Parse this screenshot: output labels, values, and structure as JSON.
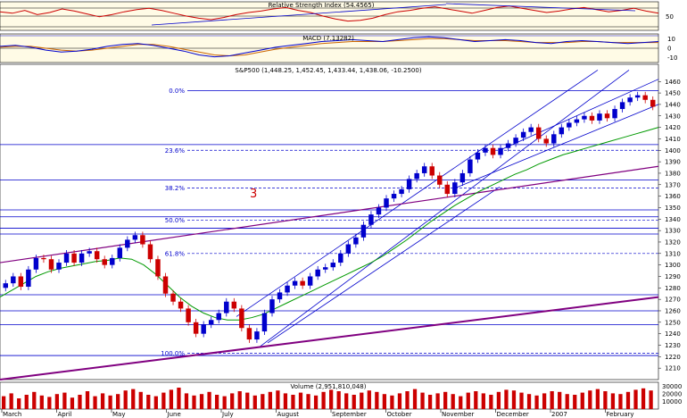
{
  "colors": {
    "panel_bg": "#fffbe6",
    "up": "#0000cc",
    "down": "#cc0000",
    "ma": "#009900",
    "trend": "#0000cc",
    "purple": "#800080",
    "macd": "#0000cc",
    "signal": "#cc6600",
    "rsi": "#cc0000"
  },
  "chart_data": [
    {
      "type": "line",
      "panel": "rsi",
      "title": "Relative Strength Index (54.4565)",
      "ylim": [
        30,
        70
      ],
      "yticks": [
        "50"
      ],
      "series": [
        {
          "name": "RSI",
          "values": [
            56,
            54,
            58,
            52,
            55,
            60,
            57,
            53,
            49,
            52,
            56,
            59,
            61,
            58,
            54,
            50,
            47,
            45,
            48,
            52,
            55,
            57,
            60,
            62,
            58,
            55,
            50,
            46,
            43,
            44,
            47,
            52,
            56,
            58,
            61,
            63,
            60,
            57,
            54,
            58,
            62,
            64,
            61,
            58,
            55,
            57,
            60,
            62,
            59,
            56,
            58,
            61,
            57,
            54
          ]
        }
      ]
    },
    {
      "type": "line",
      "panel": "macd",
      "title": "MACD (7.13282)",
      "ylim": [
        -15,
        15
      ],
      "yticks": [
        "10",
        "0",
        "-10"
      ],
      "series": [
        {
          "name": "MACD",
          "values": [
            2,
            3,
            1,
            -2,
            -4,
            -3,
            -1,
            2,
            4,
            5,
            3,
            0,
            -3,
            -7,
            -9,
            -8,
            -5,
            -2,
            1,
            3,
            5,
            7,
            8,
            9,
            8,
            7,
            9,
            11,
            12,
            11,
            9,
            7,
            8,
            9,
            8,
            6,
            5,
            7,
            8,
            7,
            6,
            5,
            6,
            7
          ]
        },
        {
          "name": "Signal",
          "values": [
            1,
            2,
            2,
            0,
            -2,
            -3,
            -2,
            0,
            2,
            4,
            4,
            2,
            -1,
            -4,
            -7,
            -8,
            -7,
            -4,
            -1,
            1,
            3,
            5,
            6,
            7,
            7,
            7,
            8,
            9,
            10,
            10,
            9,
            8,
            8,
            8,
            7,
            6,
            6,
            6,
            7,
            7,
            6,
            6,
            6,
            6
          ]
        }
      ]
    },
    {
      "type": "candlestick",
      "panel": "price",
      "title": "S&P500 (1,448.25, 1,452.45, 1,433.44, 1,438.06, -10.2500)",
      "ylim": [
        1200,
        1475
      ],
      "yticks": [
        "1460",
        "1450",
        "1440",
        "1430",
        "1420",
        "1410",
        "1400",
        "1390",
        "1380",
        "1370",
        "1360",
        "1350",
        "1340",
        "1330",
        "1320",
        "1310",
        "1300",
        "1290",
        "1280",
        "1270",
        "1260",
        "1250",
        "1240",
        "1230",
        "1220",
        "1210"
      ],
      "xticks": [
        "March",
        "April",
        "May",
        "June",
        "July",
        "August",
        "September",
        "October",
        "November",
        "December",
        "2007",
        "February"
      ],
      "close_series": [
        1284,
        1290,
        1281,
        1296,
        1306,
        1305,
        1296,
        1302,
        1310,
        1302,
        1310,
        1312,
        1305,
        1300,
        1306,
        1315,
        1322,
        1326,
        1318,
        1305,
        1290,
        1275,
        1268,
        1262,
        1250,
        1240,
        1248,
        1252,
        1258,
        1268,
        1262,
        1245,
        1235,
        1242,
        1258,
        1270,
        1276,
        1282,
        1286,
        1282,
        1290,
        1296,
        1298,
        1302,
        1310,
        1318,
        1324,
        1335,
        1344,
        1350,
        1358,
        1362,
        1366,
        1375,
        1380,
        1386,
        1378,
        1370,
        1362,
        1372,
        1380,
        1392,
        1398,
        1402,
        1396,
        1402,
        1406,
        1411,
        1416,
        1420,
        1410,
        1406,
        1414,
        1420,
        1424,
        1427,
        1430,
        1426,
        1432,
        1428,
        1436,
        1442,
        1446,
        1448,
        1444,
        1438
      ],
      "moving_average": [
        1272,
        1278,
        1284,
        1290,
        1294,
        1297,
        1299,
        1301,
        1303,
        1304,
        1306,
        1305,
        1300,
        1292,
        1282,
        1272,
        1264,
        1258,
        1254,
        1252,
        1252,
        1254,
        1257,
        1262,
        1267,
        1272,
        1277,
        1282,
        1287,
        1292,
        1297,
        1302,
        1308,
        1315,
        1322,
        1330,
        1338,
        1345,
        1352,
        1358,
        1364,
        1369,
        1374,
        1379,
        1383,
        1388,
        1392,
        1396,
        1399,
        1402,
        1405,
        1408,
        1411,
        1414,
        1417,
        1420
      ],
      "fibonacci": [
        {
          "label": "0.0%",
          "value": 1452
        },
        {
          "label": "23.6%",
          "value": 1400
        },
        {
          "label": "38.2%",
          "value": 1367
        },
        {
          "label": "50.0%",
          "value": 1339
        },
        {
          "label": "61.8%",
          "value": 1310
        },
        {
          "label": "100.0%",
          "value": 1223
        }
      ],
      "support_resistance": [
        1405,
        1374,
        1348,
        1342,
        1332,
        1327,
        1274,
        1260,
        1248,
        1221
      ],
      "annotation": "3"
    },
    {
      "type": "bar",
      "panel": "volume",
      "title": "Volume (2,951,810,048)",
      "yticks": [
        "30000",
        "20000",
        "10000"
      ],
      "ylim": [
        0,
        35000
      ],
      "values": [
        18,
        22,
        15,
        20,
        24,
        19,
        17,
        21,
        23,
        16,
        20,
        25,
        18,
        22,
        19,
        21,
        26,
        28,
        24,
        20,
        18,
        23,
        27,
        30,
        22,
        19,
        21,
        24,
        20,
        18,
        22,
        25,
        23,
        19,
        21,
        24,
        26,
        22,
        20,
        23,
        21,
        19,
        24,
        27,
        25,
        22,
        20,
        23,
        26,
        24,
        21,
        19,
        22,
        25,
        28,
        23,
        20,
        22,
        24,
        21,
        18,
        23,
        25,
        22,
        20,
        24,
        27,
        26,
        23,
        21,
        19,
        22,
        25,
        24,
        21,
        20,
        23,
        26,
        28,
        25,
        22,
        21,
        24,
        27,
        29,
        26
      ]
    }
  ]
}
